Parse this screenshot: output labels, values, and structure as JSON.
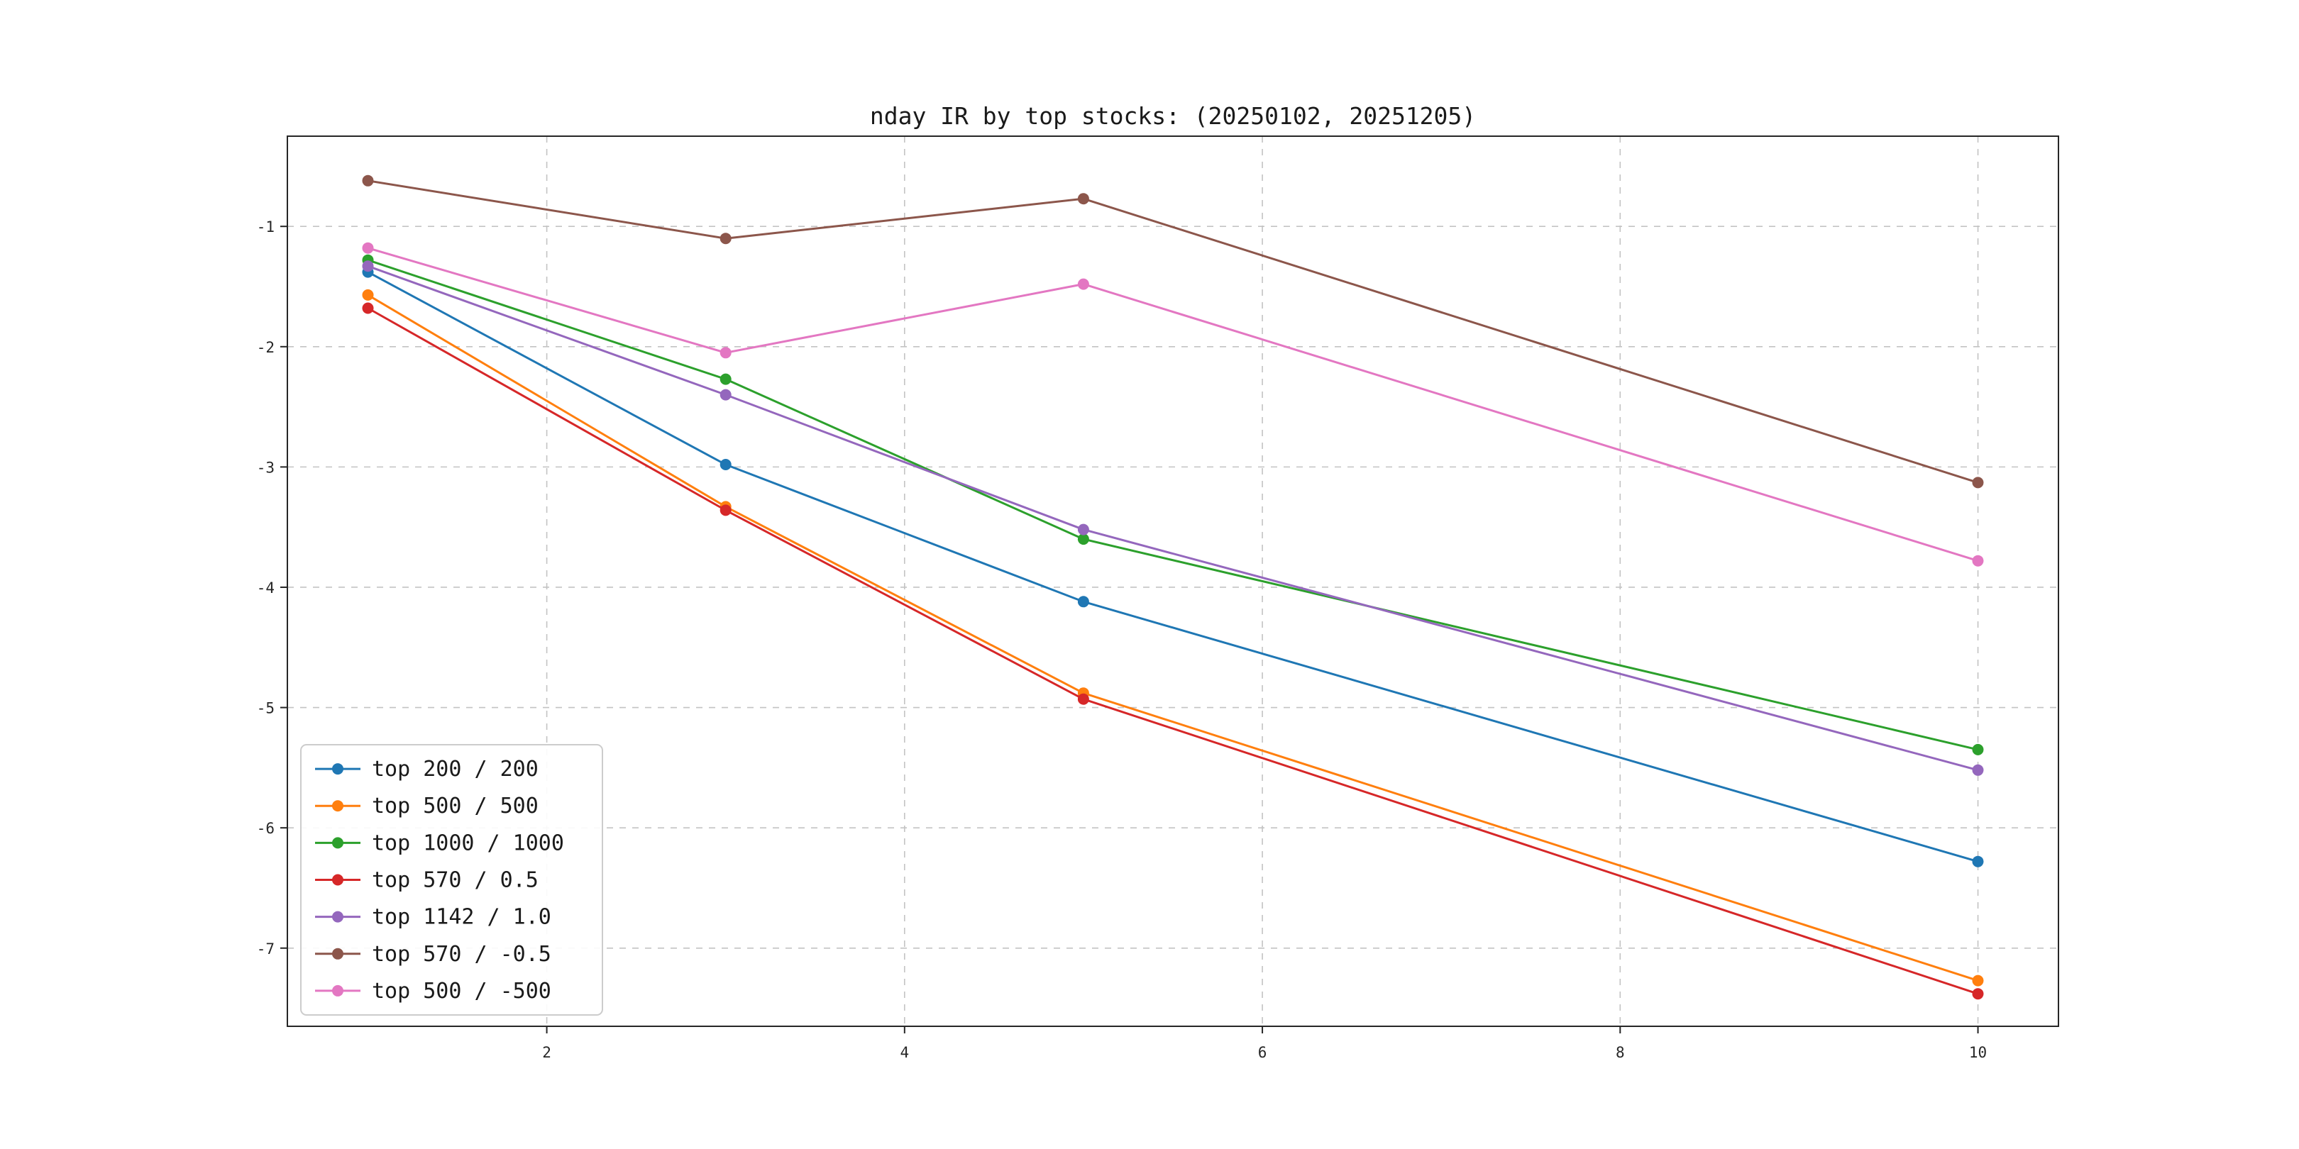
{
  "chart_data": {
    "type": "line",
    "title": "nday IR by top stocks: (20250102, 20251205)",
    "xlabel": "",
    "ylabel": "",
    "x": [
      1,
      3,
      5,
      10
    ],
    "xticks": [
      2,
      4,
      6,
      8,
      10
    ],
    "yticks": [
      -1,
      -2,
      -3,
      -4,
      -5,
      -6,
      -7
    ],
    "xlim": [
      0.55,
      10.45
    ],
    "ylim": [
      -7.65,
      -0.25
    ],
    "grid": true,
    "grid_style": "dashed",
    "legend_position": "lower left",
    "marker": "circle",
    "series": [
      {
        "name": "top 200 / 200",
        "color": "#1f77b4",
        "y": [
          -1.38,
          -2.98,
          -4.12,
          -6.28
        ]
      },
      {
        "name": "top 500 / 500",
        "color": "#ff7f0e",
        "y": [
          -1.57,
          -3.33,
          -4.88,
          -7.27
        ]
      },
      {
        "name": "top 1000 / 1000",
        "color": "#2ca02c",
        "y": [
          -1.28,
          -2.27,
          -3.6,
          -5.35
        ]
      },
      {
        "name": "top 570 / 0.5",
        "color": "#d62728",
        "y": [
          -1.68,
          -3.36,
          -4.93,
          -7.38
        ]
      },
      {
        "name": "top 1142 / 1.0",
        "color": "#9467bd",
        "y": [
          -1.33,
          -2.4,
          -3.52,
          -5.52
        ]
      },
      {
        "name": "top 570 / -0.5",
        "color": "#8c564b",
        "y": [
          -0.62,
          -1.1,
          -0.77,
          -3.13
        ]
      },
      {
        "name": "top 500 / -500",
        "color": "#e377c2",
        "y": [
          -1.18,
          -2.05,
          -1.48,
          -3.78
        ]
      }
    ]
  }
}
